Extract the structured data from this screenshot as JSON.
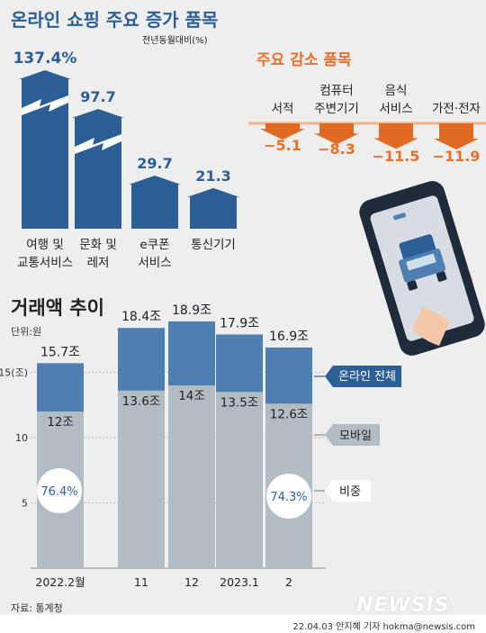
{
  "colors": {
    "blue_dark": "#2b5f96",
    "blue_mid": "#4f7fb2",
    "gray_bar": "#b3bcc3",
    "orange": "#e8702a",
    "orange_arrow": "#e06a24",
    "background": "#eeeeee"
  },
  "increase_section": {
    "title": "온라인 쇼핑 주요 증가 품목",
    "unit_note": "전년동월대비(%)"
  },
  "decrease_section": {
    "title": "주요 감소 품목"
  },
  "trend_section": {
    "title": "거래액 추이",
    "unit": "단위:원"
  },
  "legend": {
    "online_total": "온라인 전체",
    "mobile": "모바일",
    "share": "비중"
  },
  "source": "자료: 통계청",
  "credit": "22.04.03 안지혜 기자 hokma@newsis.com",
  "watermark": "NEWSIS",
  "illustration": "phone-with-truck-icon",
  "chart_data": [
    {
      "type": "bar",
      "title": "온라인 쇼핑 주요 증가 품목",
      "unit": "전년동월대비(%)",
      "categories": [
        [
          "여행 및",
          "교통서비스"
        ],
        [
          "문화 및",
          "레저"
        ],
        [
          "e쿠폰",
          "서비스"
        ],
        [
          "통신기기"
        ]
      ],
      "values": [
        137.4,
        97.7,
        29.7,
        21.3
      ],
      "value_labels": [
        "137.4%",
        "97.7",
        "29.7",
        "21.3"
      ],
      "broken_axis_bars": [
        0,
        1
      ]
    },
    {
      "type": "bar",
      "title": "주요 감소 품목",
      "categories": [
        [
          "서적"
        ],
        [
          "컴퓨터",
          "주변기기"
        ],
        [
          "음식",
          "서비스"
        ],
        [
          "가전·전자"
        ]
      ],
      "values": [
        -5.1,
        -8.3,
        -11.5,
        -11.9
      ],
      "value_labels": [
        "−5.1",
        "−8.3",
        "−11.5",
        "−11.9"
      ]
    },
    {
      "type": "bar",
      "title": "거래액 추이",
      "unit": "단위:원",
      "categories": [
        "2022.2월",
        "11",
        "12",
        "2023.1",
        "2"
      ],
      "yticks": [
        5,
        10,
        15
      ],
      "ytick_labels": [
        "5",
        "10",
        "15(조)"
      ],
      "ylim": [
        0,
        20
      ],
      "series": [
        {
          "name": "온라인 전체",
          "values": [
            15.7,
            18.4,
            18.9,
            17.9,
            16.9
          ],
          "labels": [
            "15.7조",
            "18.4조",
            "18.9조",
            "17.9조",
            "16.9조"
          ]
        },
        {
          "name": "모바일",
          "values": [
            12,
            13.6,
            14,
            13.5,
            12.6
          ],
          "labels": [
            "12조",
            "13.6조",
            "14조",
            "13.5조",
            "12.6조"
          ]
        }
      ],
      "share": [
        {
          "category": "2022.2월",
          "label": "76.4%"
        },
        {
          "category": "2",
          "label": "74.3%"
        }
      ]
    }
  ]
}
